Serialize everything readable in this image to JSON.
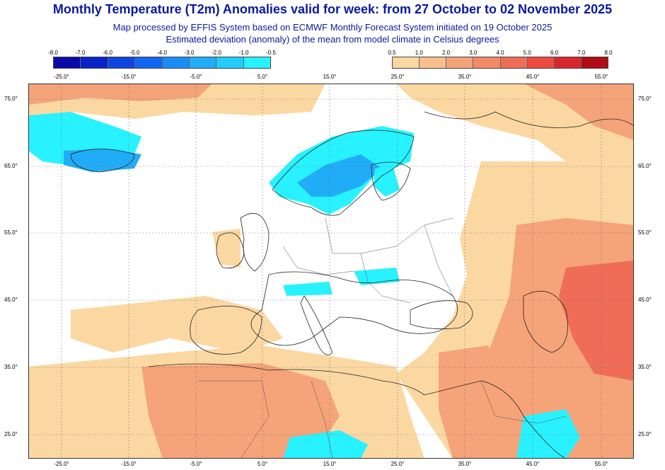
{
  "header": {
    "title": "Monthly Temperature (T2m) Anomalies valid for week: from 27 October to 02 November 2025",
    "subtitle_1": "Map processed by EFFIS System based on ECMWF Monthly Forecast System initiated on 19 October 2025",
    "subtitle_2": "Estimated deviation (anomaly) of the mean from model climate in Celsius degrees"
  },
  "legend": {
    "cold": {
      "labels": [
        "-8.0",
        "-7.0",
        "-6.0",
        "-5.0",
        "-4.0",
        "-3.0",
        "-2.0",
        "-1.0",
        "-0.5"
      ],
      "colors": [
        "#0a0aa8",
        "#0b22c8",
        "#0e44e0",
        "#1265f0",
        "#1a8cf6",
        "#21acf8",
        "#22ccfb",
        "#28f2ff"
      ]
    },
    "warm": {
      "labels": [
        "0.5",
        "1.0",
        "2.0",
        "3.0",
        "4.0",
        "5.0",
        "6.0",
        "7.0",
        "8.0"
      ],
      "colors": [
        "#fbd8a2",
        "#f8bf8c",
        "#f5a379",
        "#f28a68",
        "#ef6d57",
        "#ea4a3f",
        "#d7272b",
        "#b00c16"
      ]
    }
  },
  "axes": {
    "lon_labels": [
      "-25.0°",
      "-15.0°",
      "-5.0°",
      "5.0°",
      "15.0°",
      "25.0°",
      "35.0°",
      "45.0°",
      "55.0°"
    ],
    "lat_labels": [
      "75.0°",
      "65.0°",
      "55.0°",
      "45.0°",
      "35.0°",
      "25.0°"
    ]
  },
  "colors": {
    "title": "#0b1a9c",
    "warm_light": "#fbd8a2",
    "warm_mid": "#f5a379",
    "warm_strong": "#ef6d57",
    "cold_light": "#28f2ff",
    "cold_mid": "#21acf8",
    "coast": "#222222",
    "grid": "#666666"
  }
}
